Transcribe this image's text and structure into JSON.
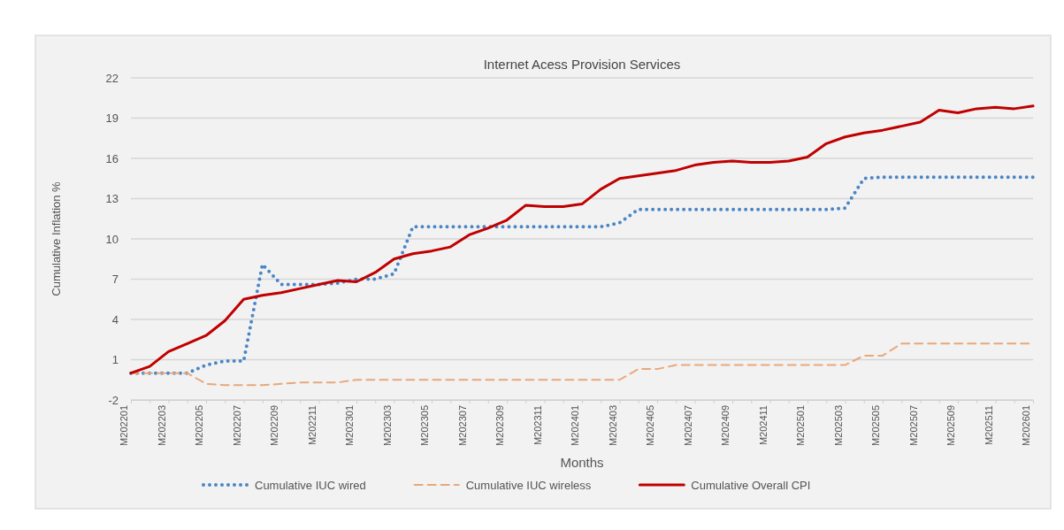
{
  "chart_data": {
    "type": "line",
    "title": "Internet Acess Provision Services",
    "xlabel": "Months",
    "ylabel": "Cumulative Inflation %",
    "categories": [
      "M202201",
      null,
      "M202203",
      null,
      "M202205",
      null,
      "M202207",
      null,
      "M202209",
      null,
      "M202211",
      null,
      "M202301",
      null,
      "M202303",
      null,
      "M202305",
      null,
      "M202307",
      null,
      "M202309",
      null,
      "M202311",
      null,
      "M202401",
      null,
      "M202403",
      null,
      "M202405",
      null,
      "M202407",
      null,
      "M202409",
      null,
      "M202411",
      null,
      "M202501",
      null,
      "M202503",
      null,
      "M202505",
      null,
      "M202507",
      null,
      "M202509",
      null,
      "M202511",
      null,
      "M202601"
    ],
    "ylim": [
      -2,
      22
    ],
    "yticks": [
      -2,
      1,
      4,
      7,
      10,
      13,
      16,
      19,
      22
    ],
    "grid": "y",
    "legend": "bottom",
    "series": [
      {
        "name": "Cumulative IUC wired",
        "color": "#4a86c5",
        "line_style": "dotted",
        "values": [
          0,
          0,
          0,
          0,
          0.6,
          0.9,
          0.9,
          8.1,
          6.6,
          6.6,
          6.6,
          6.7,
          7.0,
          7.0,
          7.4,
          10.9,
          10.9,
          10.9,
          10.9,
          10.9,
          10.9,
          10.9,
          10.9,
          10.9,
          10.9,
          10.9,
          11.2,
          12.2,
          12.2,
          12.2,
          12.2,
          12.2,
          12.2,
          12.2,
          12.2,
          12.2,
          12.2,
          12.2,
          12.3,
          14.5,
          14.6,
          14.6,
          14.6,
          14.6,
          14.6,
          14.6,
          14.6,
          14.6,
          14.6
        ]
      },
      {
        "name": "Cumulative IUC wireless",
        "color": "#e8a87c",
        "line_style": "dashed",
        "values": [
          0,
          0,
          0,
          0,
          -0.8,
          -0.9,
          -0.9,
          -0.9,
          -0.8,
          -0.7,
          -0.7,
          -0.7,
          -0.5,
          -0.5,
          -0.5,
          -0.5,
          -0.5,
          -0.5,
          -0.5,
          -0.5,
          -0.5,
          -0.5,
          -0.5,
          -0.5,
          -0.5,
          -0.5,
          -0.5,
          0.3,
          0.3,
          0.6,
          0.6,
          0.6,
          0.6,
          0.6,
          0.6,
          0.6,
          0.6,
          0.6,
          0.6,
          1.3,
          1.3,
          2.2,
          2.2,
          2.2,
          2.2,
          2.2,
          2.2,
          2.2,
          2.2
        ]
      },
      {
        "name": "Cumulative Overall CPI",
        "color": "#c00000",
        "line_style": "solid",
        "values": [
          0,
          0.5,
          1.6,
          2.2,
          2.8,
          3.9,
          5.5,
          5.8,
          6.0,
          6.3,
          6.6,
          6.9,
          6.8,
          7.5,
          8.5,
          8.9,
          9.1,
          9.4,
          10.3,
          10.8,
          11.4,
          12.5,
          12.4,
          12.4,
          12.6,
          13.7,
          14.5,
          14.7,
          14.9,
          15.1,
          15.5,
          15.7,
          15.8,
          15.7,
          15.7,
          15.8,
          16.1,
          17.1,
          17.6,
          17.9,
          18.1,
          18.4,
          18.7,
          19.6,
          19.4,
          19.7,
          19.8,
          19.7,
          19.9
        ]
      }
    ]
  }
}
